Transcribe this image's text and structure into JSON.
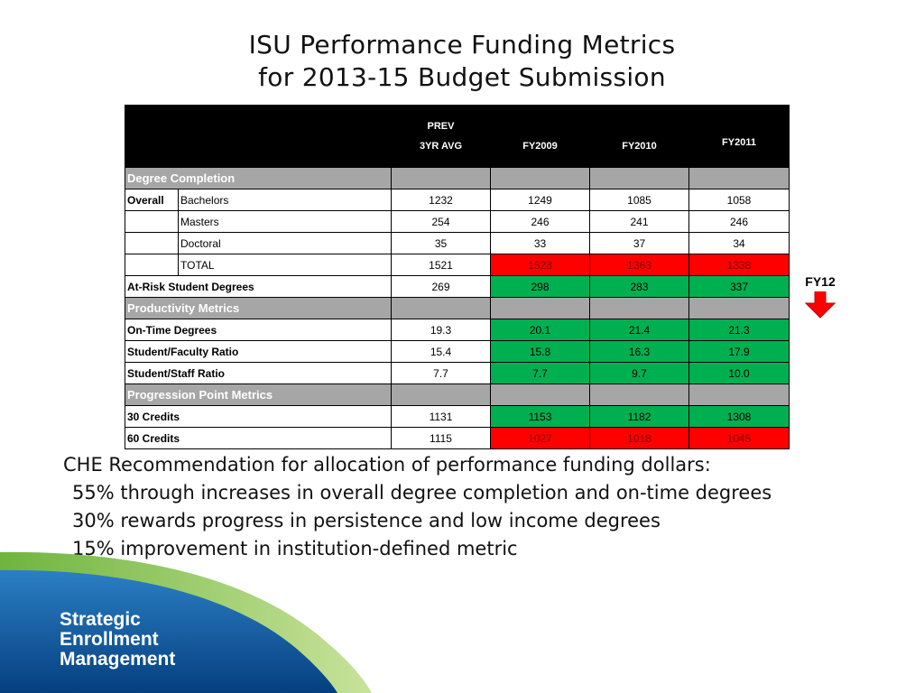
{
  "title": {
    "line1": "ISU Performance Funding Metrics",
    "line2": "for 2013-15 Budget Submission"
  },
  "table": {
    "header": {
      "prev_line1": "PREV",
      "prev_line2": "3YR AVG",
      "fy2009": "FY2009",
      "fy2010": "FY2010",
      "fy2011": "FY2011"
    },
    "sections": {
      "degree_completion": "Degree Completion",
      "productivity": "Productivity Metrics",
      "progression": "Progression Point Metrics"
    },
    "rows": {
      "bachelors": {
        "group": "Overall",
        "label": "Bachelors",
        "prev": "1232",
        "fy2009": "1249",
        "fy2010": "1085",
        "fy2011": "1058"
      },
      "masters": {
        "label": "Masters",
        "prev": "254",
        "fy2009": "246",
        "fy2010": "241",
        "fy2011": "246"
      },
      "doctoral": {
        "label": "Doctoral",
        "prev": "35",
        "fy2009": "33",
        "fy2010": "37",
        "fy2011": "34"
      },
      "total": {
        "label": "TOTAL",
        "prev": "1521",
        "fy2009": "1528",
        "fy2010": "1363",
        "fy2011": "1338"
      },
      "at_risk": {
        "label": "At-Risk Student Degrees",
        "prev": "269",
        "fy2009": "298",
        "fy2010": "283",
        "fy2011": "337"
      },
      "on_time": {
        "label": "On-Time Degrees",
        "prev": "19.3",
        "fy2009": "20.1",
        "fy2010": "21.4",
        "fy2011": "21.3"
      },
      "faculty": {
        "label": "Student/Faculty Ratio",
        "prev": "15.4",
        "fy2009": "15.8",
        "fy2010": "16.3",
        "fy2011": "17.9"
      },
      "staff": {
        "label": "Student/Staff Ratio",
        "prev": "7.7",
        "fy2009": "7.7",
        "fy2010": "9.7",
        "fy2011": "10.0"
      },
      "credits30": {
        "label": "30 Credits",
        "prev": "1131",
        "fy2009": "1153",
        "fy2010": "1182",
        "fy2011": "1308"
      },
      "credits60": {
        "label": "60 Credits",
        "prev": "1115",
        "fy2009": "1027",
        "fy2010": "1018",
        "fy2011": "1045"
      }
    }
  },
  "fy12": {
    "label": "FY12",
    "arrow_icon": "arrow-down-icon",
    "arrow_color": "#ff0000"
  },
  "recommendation": {
    "heading": "CHE Recommendation for allocation of performance funding dollars:",
    "items": [
      "55% through increases in overall degree completion and on-time degrees",
      "30% rewards progress in persistence and low income degrees",
      "15% improvement in institution-defined metric"
    ]
  },
  "logo": {
    "line1": "Strategic",
    "line2": "Enrollment",
    "line3": "Management"
  },
  "colors": {
    "red": "#ff0000",
    "green": "#00b050",
    "section_grey": "#a6a6a6",
    "header_black": "#000000",
    "brand_blue": "#0a5ea8",
    "brand_green": "#8cc63f"
  }
}
